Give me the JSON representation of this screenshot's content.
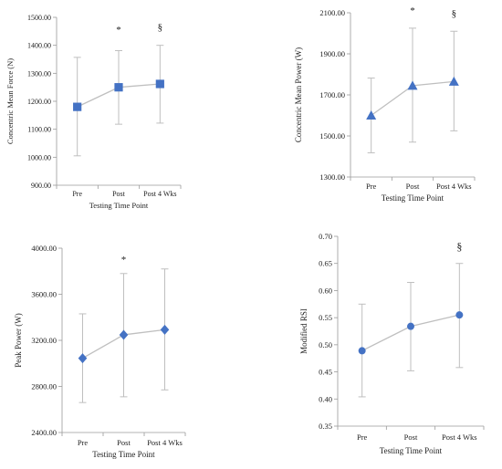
{
  "chart_data": [
    {
      "type": "line",
      "categories": [
        "Pre",
        "Post",
        "Post 4 Wks"
      ],
      "values": [
        1180,
        1250,
        1262
      ],
      "error_upper": [
        1357,
        1381,
        1400
      ],
      "error_lower": [
        1005,
        1118,
        1122
      ],
      "marker": "square",
      "ylabel": "Concentric Mean Force (N)",
      "xlabel": "Testing Time Point",
      "ylim": [
        900,
        1500
      ],
      "yticks": [
        "900.00",
        "1000.00",
        "1100.00",
        "1200.00",
        "1300.00",
        "1400.00",
        "1500.00"
      ],
      "annotations": [
        "",
        "*",
        "§"
      ],
      "grid": false
    },
    {
      "type": "line",
      "categories": [
        "Pre",
        "Post",
        "Post 4 Wks"
      ],
      "values": [
        1600,
        1745,
        1765
      ],
      "error_upper": [
        1782,
        2025,
        2010
      ],
      "error_lower": [
        1418,
        1470,
        1525
      ],
      "marker": "triangle",
      "ylabel": "Concentric Mean Power (W)",
      "xlabel": "Testing Time Point",
      "ylim": [
        1300,
        2100
      ],
      "yticks": [
        "1300.00",
        "1500.00",
        "1700.00",
        "1900.00",
        "2100.00"
      ],
      "annotations": [
        "",
        "*",
        "§"
      ],
      "grid": false
    },
    {
      "type": "line",
      "categories": [
        "Pre",
        "Post",
        "Post 4 Wks"
      ],
      "values": [
        3045,
        3248,
        3292
      ],
      "error_upper": [
        3430,
        3780,
        3820
      ],
      "error_lower": [
        2660,
        2710,
        2770
      ],
      "marker": "diamond",
      "ylabel": "Peak Power (W)",
      "xlabel": "Testing Time Point",
      "ylim": [
        2400,
        4000
      ],
      "yticks": [
        "2400.00",
        "2800.00",
        "3200.00",
        "3600.00",
        "4000.00"
      ],
      "annotations": [
        "",
        "*",
        ""
      ],
      "grid": false
    },
    {
      "type": "line",
      "categories": [
        "Pre",
        "Post",
        "Post 4 Wks"
      ],
      "values": [
        0.489,
        0.534,
        0.555
      ],
      "error_upper": [
        0.575,
        0.615,
        0.65
      ],
      "error_lower": [
        0.404,
        0.452,
        0.458
      ],
      "marker": "circle",
      "ylabel": "Modified RSI",
      "xlabel": "Testing Time Point",
      "ylim": [
        0.35,
        0.7
      ],
      "yticks": [
        "0.35",
        "0.40",
        "0.45",
        "0.50",
        "0.55",
        "0.60",
        "0.65",
        "0.70"
      ],
      "annotations": [
        "",
        "",
        "§"
      ],
      "grid": false
    }
  ],
  "colors": {
    "marker": "#4472c4",
    "line": "#bfbfbf",
    "error_bar": "#bfbfbf",
    "axis": "#9a9a9a",
    "text": "#222222"
  }
}
